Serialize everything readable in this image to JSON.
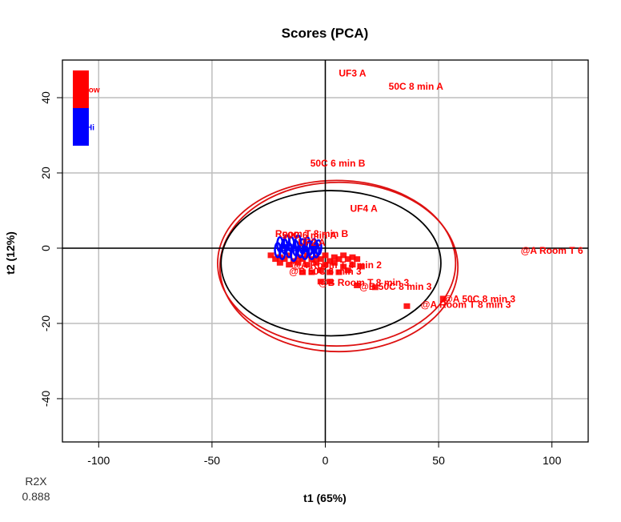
{
  "chart_data": {
    "type": "scatter",
    "title": "Scores (PCA)",
    "xlabel": "t1 (65%)",
    "ylabel": "t2 (12%)",
    "xlim": [
      -116,
      116
    ],
    "ylim": [
      -51.5,
      50
    ],
    "xticks": [
      -100,
      -50,
      0,
      50,
      100
    ],
    "yticks": [
      -40,
      -20,
      0,
      20,
      40
    ],
    "grid": true,
    "legend": {
      "placement": "top-left",
      "entries": [
        {
          "name": "low",
          "color": "#ff0000"
        },
        {
          "name": "Hi",
          "color": "#0000ff"
        }
      ]
    },
    "colors": {
      "low": "#ff0000",
      "hi": "#0000ff",
      "ellipse_outer": "#dd1111",
      "ellipse_inner": "#000000",
      "grid": "#bebebe"
    },
    "ellipses": [
      {
        "cx": 5,
        "cy": -4,
        "rx": 52.5,
        "ry": 22,
        "color": "#dd1111"
      },
      {
        "cx": 6,
        "cy": -5,
        "rx": 52.5,
        "ry": 22.5,
        "color": "#dd1111"
      },
      {
        "cx": 2.5,
        "cy": -4,
        "rx": 48.5,
        "ry": 19.3,
        "color": "#000000"
      }
    ],
    "labeled_points": [
      {
        "text": "UF3 A",
        "x": 12,
        "y": 46.5,
        "group": "low"
      },
      {
        "text": "50C 8 min A",
        "x": 40,
        "y": 43,
        "group": "low"
      },
      {
        "text": "50C 6 min B",
        "x": 5.5,
        "y": 22.5,
        "group": "low"
      },
      {
        "text": "UF4 A",
        "x": 17,
        "y": 10.5,
        "group": "low"
      },
      {
        "text": "Room T 8 min B",
        "x": -6,
        "y": 3.8,
        "group": "low"
      },
      {
        "text": "50C 6 min A",
        "x": -7,
        "y": 3.4,
        "group": "low"
      },
      {
        "text": "UF2 A",
        "x": -6,
        "y": 1.5,
        "group": "low"
      },
      {
        "text": "@A Room T 6",
        "x": 100,
        "y": -0.6,
        "group": "low"
      },
      {
        "text": "@A Room T 4 min 2",
        "x": 5,
        "y": -4.5,
        "group": "low"
      },
      {
        "text": "@B 50C 6 min 3",
        "x": 0,
        "y": -6.2,
        "group": "low"
      },
      {
        "text": "@B Room T 8 min 3",
        "x": 17,
        "y": -9.2,
        "group": "low"
      },
      {
        "text": "@B 50C 8 min 3",
        "x": 31,
        "y": -10.2,
        "group": "low"
      },
      {
        "text": "@A 50C 8 min 3",
        "x": 68,
        "y": -13.5,
        "group": "low"
      },
      {
        "text": "@A Room T 8 min 3",
        "x": 62,
        "y": -15,
        "group": "low"
      },
      {
        "text": "UF1 A",
        "x": -14,
        "y": 0.1,
        "group": "hi"
      }
    ],
    "cluster_points_low": [
      [
        -24,
        -2
      ],
      [
        -22,
        -3
      ],
      [
        -20,
        -2.5
      ],
      [
        -18,
        -3
      ],
      [
        -16,
        -2
      ],
      [
        -14,
        -3.5
      ],
      [
        -12,
        -2.5
      ],
      [
        -10,
        -3
      ],
      [
        -8,
        -2
      ],
      [
        -6,
        -3
      ],
      [
        -4,
        -2.5
      ],
      [
        -2,
        -3
      ],
      [
        0,
        -2
      ],
      [
        2,
        -3.5
      ],
      [
        4,
        -2.5
      ],
      [
        6,
        -3
      ],
      [
        8,
        -2
      ],
      [
        10,
        -3
      ],
      [
        12,
        -2.5
      ],
      [
        14,
        -3
      ],
      [
        -20,
        -4
      ],
      [
        -16,
        -4.5
      ],
      [
        -12,
        -4
      ],
      [
        -8,
        -4.5
      ],
      [
        -4,
        -4
      ],
      [
        0,
        -4.5
      ],
      [
        4,
        -4
      ],
      [
        8,
        -5
      ],
      [
        12,
        -4.5
      ],
      [
        16,
        -5
      ],
      [
        -10,
        -6.5
      ],
      [
        -6,
        -6.5
      ],
      [
        -2,
        -6
      ],
      [
        2,
        -6.5
      ],
      [
        6,
        -6.5
      ],
      [
        10,
        -6
      ],
      [
        -2,
        -9
      ],
      [
        2,
        -9
      ],
      [
        14,
        -10
      ],
      [
        22,
        -10.5
      ],
      [
        36,
        -15.5
      ],
      [
        52,
        -13.5
      ]
    ],
    "cluster_points_hi": [
      [
        -21,
        -0.5
      ],
      [
        -20,
        1
      ],
      [
        -19,
        -1
      ],
      [
        -18,
        0.5
      ],
      [
        -17,
        1.5
      ],
      [
        -16,
        -0.5
      ],
      [
        -15,
        1
      ],
      [
        -14,
        -1.5
      ],
      [
        -13,
        0
      ],
      [
        -12,
        1.5
      ],
      [
        -11,
        -0.5
      ],
      [
        -10,
        0.5
      ],
      [
        -9,
        -1
      ],
      [
        -8,
        1
      ],
      [
        -7,
        0
      ],
      [
        -6,
        -1
      ],
      [
        -5,
        0.5
      ],
      [
        -4,
        -0.5
      ],
      [
        -3,
        0.2
      ]
    ]
  },
  "footer": {
    "r2x_label": "R2X",
    "r2x_value": "0.888"
  }
}
